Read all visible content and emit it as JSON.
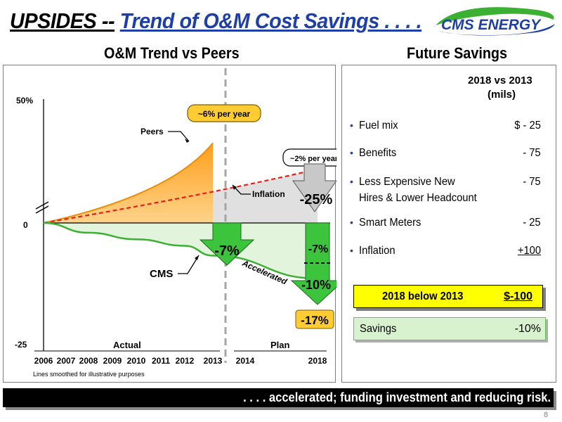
{
  "slide": {
    "title_part1": "UPSIDES --",
    "title_part2": "Trend of O&M Cost Savings . . . .",
    "logo_text": "CMS ENERGY",
    "page_number": "8",
    "footer_message": ". . . .  accelerated; funding investment and reducing risk."
  },
  "left_panel": {
    "title": "O&M Trend vs Peers"
  },
  "chart_data": {
    "type": "area",
    "title": "O&M Trend vs Peers",
    "x_categories": [
      "2006",
      "2007",
      "2008",
      "2009",
      "2010",
      "2011",
      "2012",
      "2013",
      "2014",
      "2018"
    ],
    "y_tick_labels": [
      "50%",
      "0",
      "-25"
    ],
    "y_ticks": [
      50,
      0,
      -25
    ],
    "ylim": [
      -25,
      50
    ],
    "y_axis_break": true,
    "period_labels": {
      "actual": "Actual",
      "plan": "Plan"
    },
    "note": "Lines smoothed for illustrative purposes",
    "series": [
      {
        "name": "Peers",
        "style": "solid-orange-area",
        "x": [
          2006,
          2008,
          2010,
          2012,
          2013
        ],
        "values": [
          0,
          7,
          17,
          31,
          40
        ],
        "color": "#f5a623"
      },
      {
        "name": "Inflation",
        "style": "dashed-red",
        "x": [
          2006,
          2013,
          2018
        ],
        "values": [
          0,
          16,
          27
        ],
        "color": "#e8201c"
      },
      {
        "name": "CMS",
        "style": "solid-green",
        "x": [
          2006,
          2008,
          2010,
          2012,
          2013,
          2018
        ],
        "values": [
          0,
          -3,
          -5,
          -7,
          -10,
          -17
        ],
        "color": "#3bb033"
      }
    ],
    "annotations": {
      "peers_rate": "~6% per year",
      "inflation_rate": "~2% per year",
      "gap_to_inflation": "-25%",
      "cms_actual_reduction": "-7%",
      "plan_step1": "-7%",
      "plan_step2": "-10%",
      "plan_total": "-17%",
      "accelerated_label": "Accelerated",
      "cms_label": "CMS",
      "peers_label": "Peers",
      "inflation_label": "Inflation"
    },
    "colors": {
      "peers_fill": "#ffb84d",
      "gray_fill": "#e0e0e0",
      "green_fill": "#e2f4dc",
      "arrow_green": "#3cc43c",
      "arrow_gray": "#c8c8c8",
      "callout_yellow": "#ffcc33"
    }
  },
  "right_panel": {
    "title": "Future Savings",
    "column_header_line1": "2018 vs 2013",
    "column_header_line2": "(mils)",
    "items": [
      {
        "label": "Fuel mix",
        "value": "$ - 25"
      },
      {
        "label": "Benefits",
        "value": "- 75"
      },
      {
        "label": "Less Expensive New",
        "label_line2": "Hires & Lower Headcount",
        "value": "- 75"
      },
      {
        "label": "Smart Meters",
        "value": "- 25"
      },
      {
        "label": "Inflation",
        "value": "+100"
      }
    ],
    "total_label": "2018 below 2013",
    "total_value": "$-100",
    "savings_label": "Savings",
    "savings_value": "-10%"
  }
}
